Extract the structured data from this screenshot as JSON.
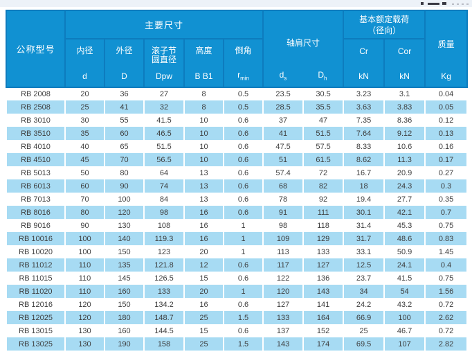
{
  "colors": {
    "header_blue": "#1191d2",
    "header_border_blue": "#0d7cbe",
    "stripe_blue": "#a7dbf3",
    "body_text": "#3d3d3d",
    "top_strip": "#edf2f8"
  },
  "table": {
    "header": {
      "model": "公称型号",
      "main_dims": "主要尺寸",
      "main_cols": [
        {
          "label": "内径",
          "symbol": "d"
        },
        {
          "label": "外径",
          "symbol": "D"
        },
        {
          "label_line1": "滚子节",
          "label_line2": "圆直径",
          "symbol": "Dpw"
        },
        {
          "label": "高度",
          "symbol": "B B1"
        },
        {
          "label": "倒角",
          "symbol_base": "r",
          "symbol_sub": "min"
        }
      ],
      "shoulder": {
        "label": "轴肩尺寸",
        "col1_base": "d",
        "col1_sub": "s",
        "col2_base": "D",
        "col2_sub": "h"
      },
      "load": {
        "line1": "基本额定载荷",
        "line2": "（径向）",
        "col1_symbol": "Cr",
        "col1_unit": "kN",
        "col2_symbol": "Cor",
        "col2_unit": "kN"
      },
      "mass": {
        "label": "质量",
        "unit": "Kg"
      }
    },
    "rows": [
      {
        "model": "RB 2008",
        "values": [
          "20",
          "36",
          "27",
          "8",
          "0.5",
          "23.5",
          "30.5",
          "3.23",
          "3.1",
          "0.04"
        ]
      },
      {
        "model": "RB 2508",
        "values": [
          "25",
          "41",
          "32",
          "8",
          "0.5",
          "28.5",
          "35.5",
          "3.63",
          "3.83",
          "0.05"
        ]
      },
      {
        "model": "RB 3010",
        "values": [
          "30",
          "55",
          "41.5",
          "10",
          "0.6",
          "37",
          "47",
          "7.35",
          "8.36",
          "0.12"
        ]
      },
      {
        "model": "RB 3510",
        "values": [
          "35",
          "60",
          "46.5",
          "10",
          "0.6",
          "41",
          "51.5",
          "7.64",
          "9.12",
          "0.13"
        ]
      },
      {
        "model": "RB 4010",
        "values": [
          "40",
          "65",
          "51.5",
          "10",
          "0.6",
          "47.5",
          "57.5",
          "8.33",
          "10.6",
          "0.16"
        ]
      },
      {
        "model": "RB 4510",
        "values": [
          "45",
          "70",
          "56.5",
          "10",
          "0.6",
          "51",
          "61.5",
          "8.62",
          "11.3",
          "0.17"
        ]
      },
      {
        "model": "RB 5013",
        "values": [
          "50",
          "80",
          "64",
          "13",
          "0.6",
          "57.4",
          "72",
          "16.7",
          "20.9",
          "0.27"
        ]
      },
      {
        "model": "RB 6013",
        "values": [
          "60",
          "90",
          "74",
          "13",
          "0.6",
          "68",
          "82",
          "18",
          "24.3",
          "0.3"
        ]
      },
      {
        "model": "RB 7013",
        "values": [
          "70",
          "100",
          "84",
          "13",
          "0.6",
          "78",
          "92",
          "19.4",
          "27.7",
          "0.35"
        ]
      },
      {
        "model": "RB 8016",
        "values": [
          "80",
          "120",
          "98",
          "16",
          "0.6",
          "91",
          "111",
          "30.1",
          "42.1",
          "0.7"
        ]
      },
      {
        "model": "RB 9016",
        "values": [
          "90",
          "130",
          "108",
          "16",
          "1",
          "98",
          "118",
          "31.4",
          "45.3",
          "0.75"
        ]
      },
      {
        "model": "RB 10016",
        "values": [
          "100",
          "140",
          "119.3",
          "16",
          "1",
          "109",
          "129",
          "31.7",
          "48.6",
          "0.83"
        ]
      },
      {
        "model": "RB 10020",
        "values": [
          "100",
          "150",
          "123",
          "20",
          "1",
          "113",
          "133",
          "33.1",
          "50.9",
          "1.45"
        ]
      },
      {
        "model": "RB 11012",
        "values": [
          "110",
          "135",
          "121.8",
          "12",
          "0.6",
          "117",
          "127",
          "12.5",
          "24.1",
          "0.4"
        ]
      },
      {
        "model": "RB 11015",
        "values": [
          "110",
          "145",
          "126.5",
          "15",
          "0.6",
          "122",
          "136",
          "23.7",
          "41.5",
          "0.75"
        ]
      },
      {
        "model": "RB 11020",
        "values": [
          "110",
          "160",
          "133",
          "20",
          "1",
          "120",
          "143",
          "34",
          "54",
          "1.56"
        ]
      },
      {
        "model": "RB 12016",
        "values": [
          "120",
          "150",
          "134.2",
          "16",
          "0.6",
          "127",
          "141",
          "24.2",
          "43.2",
          "0.72"
        ]
      },
      {
        "model": "RB 12025",
        "values": [
          "120",
          "180",
          "148.7",
          "25",
          "1.5",
          "133",
          "164",
          "66.9",
          "100",
          "2.62"
        ]
      },
      {
        "model": "RB 13015",
        "values": [
          "130",
          "160",
          "144.5",
          "15",
          "0.6",
          "137",
          "152",
          "25",
          "46.7",
          "0.72"
        ]
      },
      {
        "model": "RB 13025",
        "values": [
          "130",
          "190",
          "158",
          "25",
          "1.5",
          "143",
          "174",
          "69.5",
          "107",
          "2.82"
        ]
      }
    ]
  }
}
